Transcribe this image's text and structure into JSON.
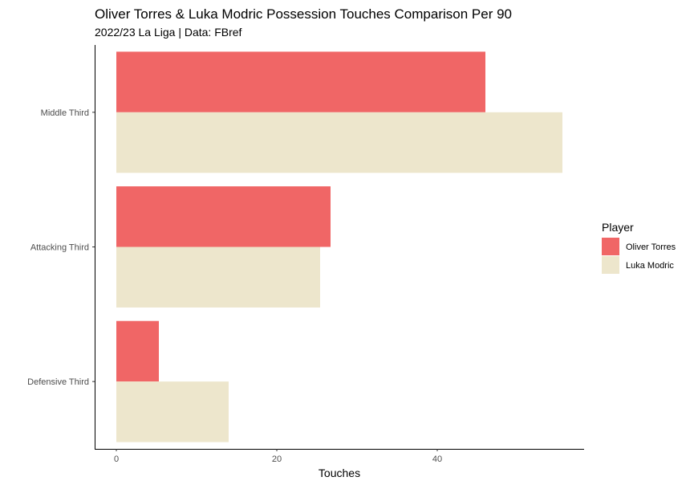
{
  "chart_data": {
    "type": "bar",
    "orientation": "horizontal",
    "title": "Oliver Torres & Luka Modric Possession Touches Comparison Per 90",
    "subtitle": "2022/23 La Liga | Data: FBref",
    "xlabel": "Touches",
    "ylabel": "",
    "categories": [
      "Middle Third",
      "Attacking Third",
      "Defensive Third"
    ],
    "series": [
      {
        "name": "Oliver Torres",
        "color": "#f06666",
        "values": [
          46.0,
          26.7,
          5.3
        ]
      },
      {
        "name": "Luka Modric",
        "color": "#ede6cc",
        "values": [
          55.6,
          25.4,
          14.0
        ]
      }
    ],
    "xlim": [
      -2.7,
      58.3
    ],
    "xticks": [
      0,
      20,
      40
    ],
    "grid": false,
    "legend": {
      "title": "Player",
      "position": "right"
    }
  }
}
